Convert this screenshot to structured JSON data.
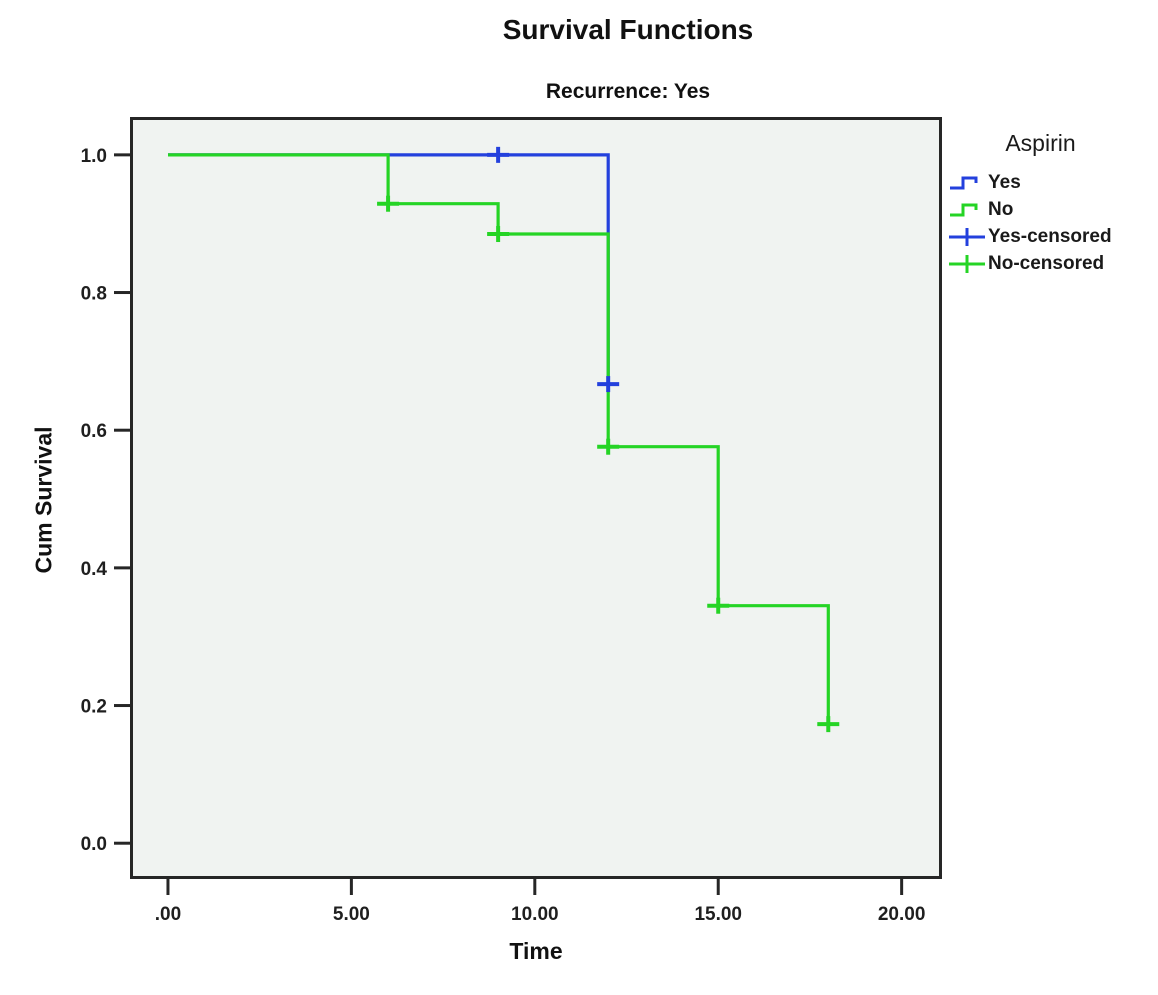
{
  "header": {
    "title": "Survival Functions",
    "subtitle": "Recurrence: Yes"
  },
  "chart_data": {
    "type": "line",
    "subtype": "kaplan-meier-step",
    "title": "Survival Functions",
    "subtitle": "Recurrence: Yes",
    "xlabel": "Time",
    "ylabel": "Cum Survival",
    "xlim": [
      -1.035,
      21.1
    ],
    "ylim": [
      -0.052,
      1.055
    ],
    "grid": false,
    "plot_background": "#f0f3f1",
    "axis_color": "#262626",
    "x_ticks": [
      0,
      5,
      10,
      15,
      20
    ],
    "x_tick_labels": [
      ".00",
      "5.00",
      "10.00",
      "15.00",
      "20.00"
    ],
    "y_ticks": [
      0.0,
      0.2,
      0.4,
      0.6,
      0.8,
      1.0
    ],
    "y_tick_labels": [
      "0.0",
      "0.2",
      "0.4",
      "0.6",
      "0.8",
      "1.0"
    ],
    "series": [
      {
        "name": "Yes",
        "color": "#2340dd",
        "points": [
          [
            0,
            1.0
          ],
          [
            12,
            1.0
          ],
          [
            12,
            0.667
          ]
        ],
        "censored": [
          [
            9,
            1.0
          ],
          [
            12,
            0.667
          ]
        ]
      },
      {
        "name": "No",
        "color": "#25d425",
        "points": [
          [
            0,
            1.0
          ],
          [
            6,
            1.0
          ],
          [
            6,
            0.929
          ],
          [
            9,
            0.929
          ],
          [
            9,
            0.885
          ],
          [
            12,
            0.885
          ],
          [
            12,
            0.576
          ],
          [
            15,
            0.576
          ],
          [
            15,
            0.345
          ],
          [
            18,
            0.345
          ],
          [
            18,
            0.173
          ]
        ],
        "censored": [
          [
            6,
            0.929
          ],
          [
            9,
            0.885
          ],
          [
            12,
            0.576
          ],
          [
            15,
            0.345
          ],
          [
            18,
            0.173
          ]
        ]
      }
    ],
    "legend": {
      "title": "Aspirin",
      "position": "right",
      "entries": [
        {
          "label": "Yes",
          "type": "step",
          "color": "#2340dd"
        },
        {
          "label": "No",
          "type": "step",
          "color": "#25d425"
        },
        {
          "label": "Yes-censored",
          "type": "plus",
          "color": "#2340dd"
        },
        {
          "label": "No-censored",
          "type": "plus",
          "color": "#25d425"
        }
      ]
    }
  }
}
